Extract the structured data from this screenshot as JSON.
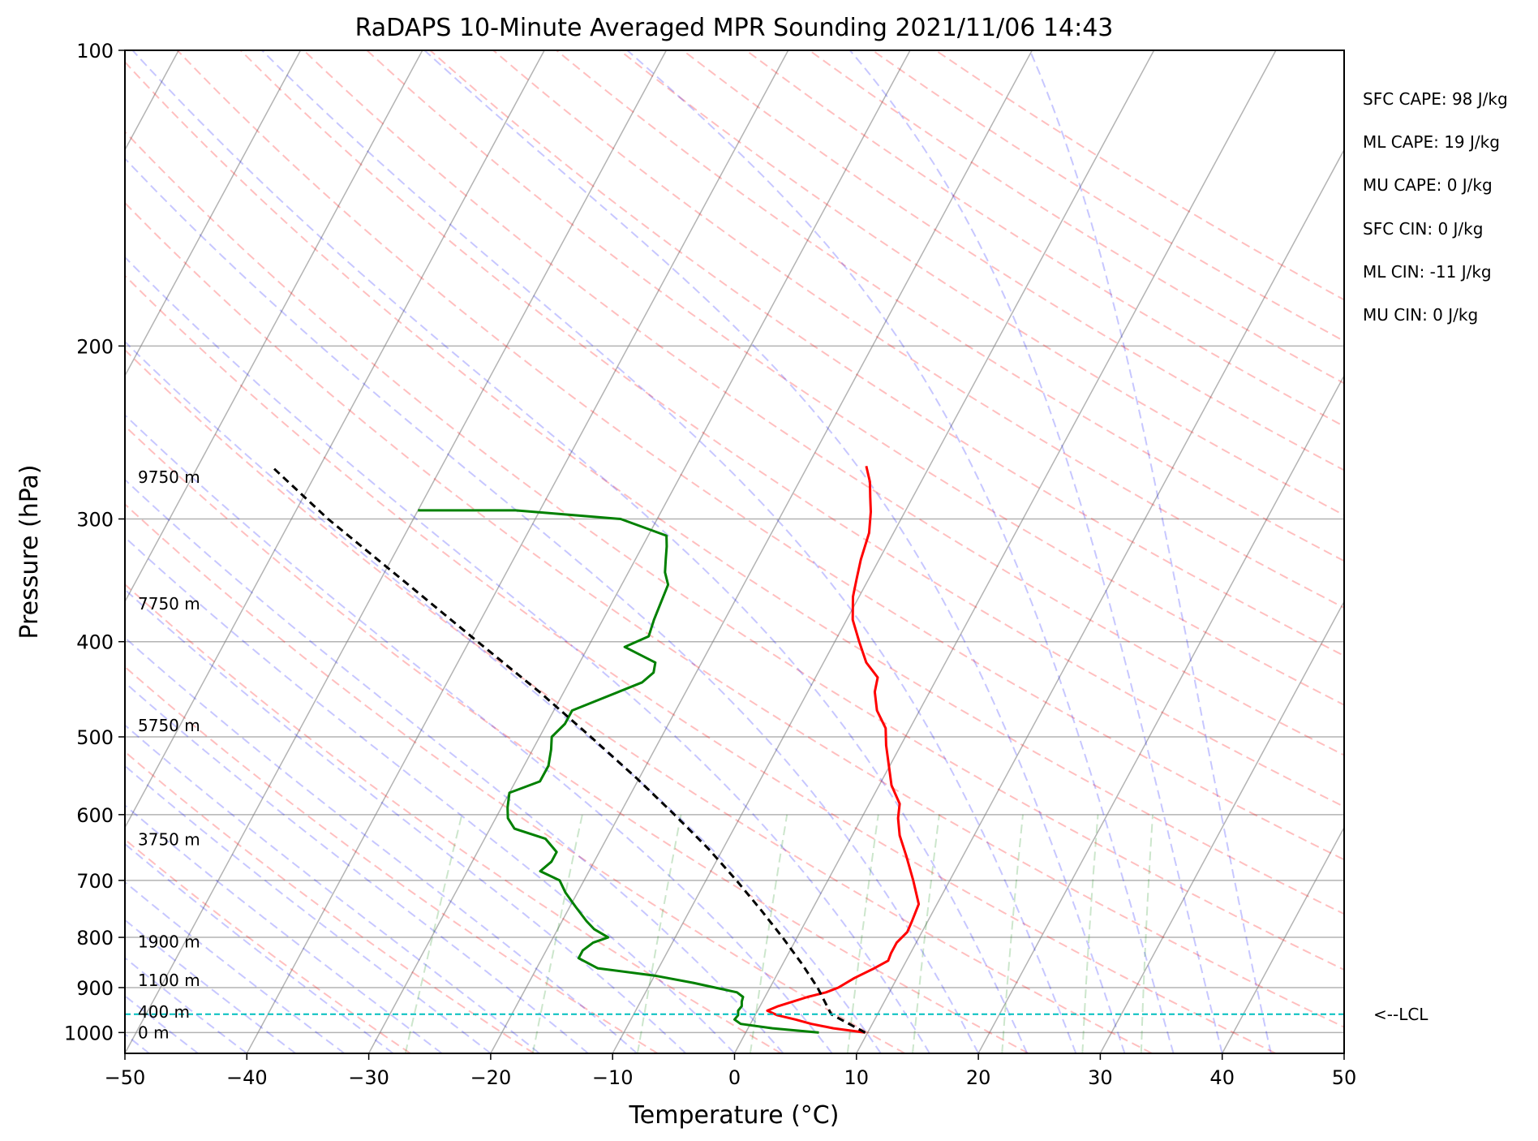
{
  "chart_data": {
    "type": "line",
    "title": "RaDAPS 10-Minute Averaged MPR Sounding 2021/11/06 14:43",
    "xlabel": "Temperature (°C)",
    "ylabel": "Pressure (hPa)",
    "xlim": [
      -50,
      50
    ],
    "ylim": [
      1050,
      100
    ],
    "y_scale": "log",
    "skew": "skew-T log-P",
    "grid": true,
    "x_ticks": [
      -50,
      -40,
      -30,
      -20,
      -10,
      0,
      10,
      20,
      30,
      40,
      50
    ],
    "y_ticks": [
      100,
      200,
      300,
      400,
      500,
      600,
      700,
      800,
      900,
      1000
    ],
    "colors": {
      "temperature": "#ff0000",
      "dewpoint": "#008000",
      "parcel": "#000000",
      "lcl": "#00bfbf",
      "dry_adiabat": "#ff0000",
      "moist_adiabat": "#0000ff",
      "mixing_ratio": "#008000",
      "isotherm": "#808080",
      "isobar": "#808080"
    },
    "series": [
      {
        "key": "temperature",
        "points": [
          [
            1000,
            9.8
          ],
          [
            990,
            7.0
          ],
          [
            980,
            5.0
          ],
          [
            970,
            3.5
          ],
          [
            960,
            1.8
          ],
          [
            950,
            0.8
          ],
          [
            940,
            1.5
          ],
          [
            930,
            2.5
          ],
          [
            920,
            3.5
          ],
          [
            910,
            4.8
          ],
          [
            900,
            5.6
          ],
          [
            880,
            6.5
          ],
          [
            860,
            7.7
          ],
          [
            845,
            8.5
          ],
          [
            830,
            8.4
          ],
          [
            810,
            8.4
          ],
          [
            790,
            8.8
          ],
          [
            770,
            8.7
          ],
          [
            740,
            8.5
          ],
          [
            700,
            7.0
          ],
          [
            660,
            5.3
          ],
          [
            630,
            3.9
          ],
          [
            605,
            3.0
          ],
          [
            585,
            2.5
          ],
          [
            560,
            1.0
          ],
          [
            530,
            -0.3
          ],
          [
            510,
            -1.2
          ],
          [
            490,
            -2.0
          ],
          [
            470,
            -3.5
          ],
          [
            450,
            -4.5
          ],
          [
            435,
            -4.9
          ],
          [
            420,
            -6.5
          ],
          [
            400,
            -8.0
          ],
          [
            380,
            -9.5
          ],
          [
            360,
            -10.5
          ],
          [
            345,
            -11.0
          ],
          [
            330,
            -11.5
          ],
          [
            310,
            -12.0
          ],
          [
            295,
            -12.8
          ],
          [
            285,
            -13.5
          ],
          [
            275,
            -14.2
          ],
          [
            265,
            -15.2
          ]
        ]
      },
      {
        "key": "dewpoint",
        "points": [
          [
            1000,
            6.0
          ],
          [
            990,
            2.0
          ],
          [
            980,
            -0.8
          ],
          [
            970,
            -1.5
          ],
          [
            960,
            -1.4
          ],
          [
            950,
            -1.6
          ],
          [
            940,
            -1.5
          ],
          [
            930,
            -1.7
          ],
          [
            920,
            -1.8
          ],
          [
            910,
            -2.5
          ],
          [
            900,
            -4.5
          ],
          [
            890,
            -6.5
          ],
          [
            875,
            -10.0
          ],
          [
            860,
            -15.0
          ],
          [
            840,
            -17.0
          ],
          [
            825,
            -17.0
          ],
          [
            810,
            -16.5
          ],
          [
            800,
            -15.5
          ],
          [
            785,
            -17.0
          ],
          [
            770,
            -18.0
          ],
          [
            745,
            -19.5
          ],
          [
            720,
            -21.0
          ],
          [
            700,
            -22.0
          ],
          [
            685,
            -24.0
          ],
          [
            670,
            -23.5
          ],
          [
            655,
            -23.5
          ],
          [
            635,
            -25.0
          ],
          [
            620,
            -28.0
          ],
          [
            605,
            -29.0
          ],
          [
            590,
            -29.5
          ],
          [
            570,
            -30.0
          ],
          [
            555,
            -28.0
          ],
          [
            535,
            -28.0
          ],
          [
            515,
            -28.5
          ],
          [
            500,
            -29.0
          ],
          [
            485,
            -28.5
          ],
          [
            470,
            -28.5
          ],
          [
            440,
            -24.0
          ],
          [
            430,
            -23.5
          ],
          [
            420,
            -23.8
          ],
          [
            405,
            -27.0
          ],
          [
            395,
            -25.5
          ],
          [
            380,
            -25.8
          ],
          [
            365,
            -26.0
          ],
          [
            350,
            -26.2
          ],
          [
            340,
            -27.0
          ],
          [
            330,
            -27.5
          ],
          [
            320,
            -28.0
          ],
          [
            312,
            -28.5
          ],
          [
            300,
            -33.0
          ],
          [
            294,
            -42.0
          ],
          [
            294,
            -50.0
          ]
        ]
      },
      {
        "key": "parcel",
        "points": [
          [
            1000,
            9.8
          ],
          [
            958,
            6.2
          ],
          [
            900,
            3.9
          ],
          [
            850,
            1.5
          ],
          [
            800,
            -1.2
          ],
          [
            750,
            -4.2
          ],
          [
            700,
            -7.5
          ],
          [
            650,
            -11.2
          ],
          [
            600,
            -15.5
          ],
          [
            550,
            -20.3
          ],
          [
            500,
            -25.8
          ],
          [
            450,
            -32.0
          ],
          [
            400,
            -39.3
          ],
          [
            350,
            -47.5
          ],
          [
            300,
            -57.0
          ],
          [
            265,
            -64.0
          ]
        ]
      }
    ],
    "lcl": {
      "pressure": 958,
      "label": "<--LCL"
    },
    "height_labels": [
      {
        "pressure": 1000,
        "label": "0 m"
      },
      {
        "pressure": 953,
        "label": "400 m"
      },
      {
        "pressure": 885,
        "label": "1100 m"
      },
      {
        "pressure": 808,
        "label": "1900 m"
      },
      {
        "pressure": 636,
        "label": "3750 m"
      },
      {
        "pressure": 487,
        "label": "5750 m"
      },
      {
        "pressure": 366,
        "label": "7750 m"
      },
      {
        "pressure": 272,
        "label": "9750 m"
      }
    ],
    "annotations": [
      "SFC CAPE: 98 J/kg",
      "ML CAPE: 19 J/kg",
      "MU CAPE: 0 J/kg",
      "SFC CIN: 0 J/kg",
      "ML CIN: -11 J/kg",
      "MU CIN: 0 J/kg"
    ]
  }
}
